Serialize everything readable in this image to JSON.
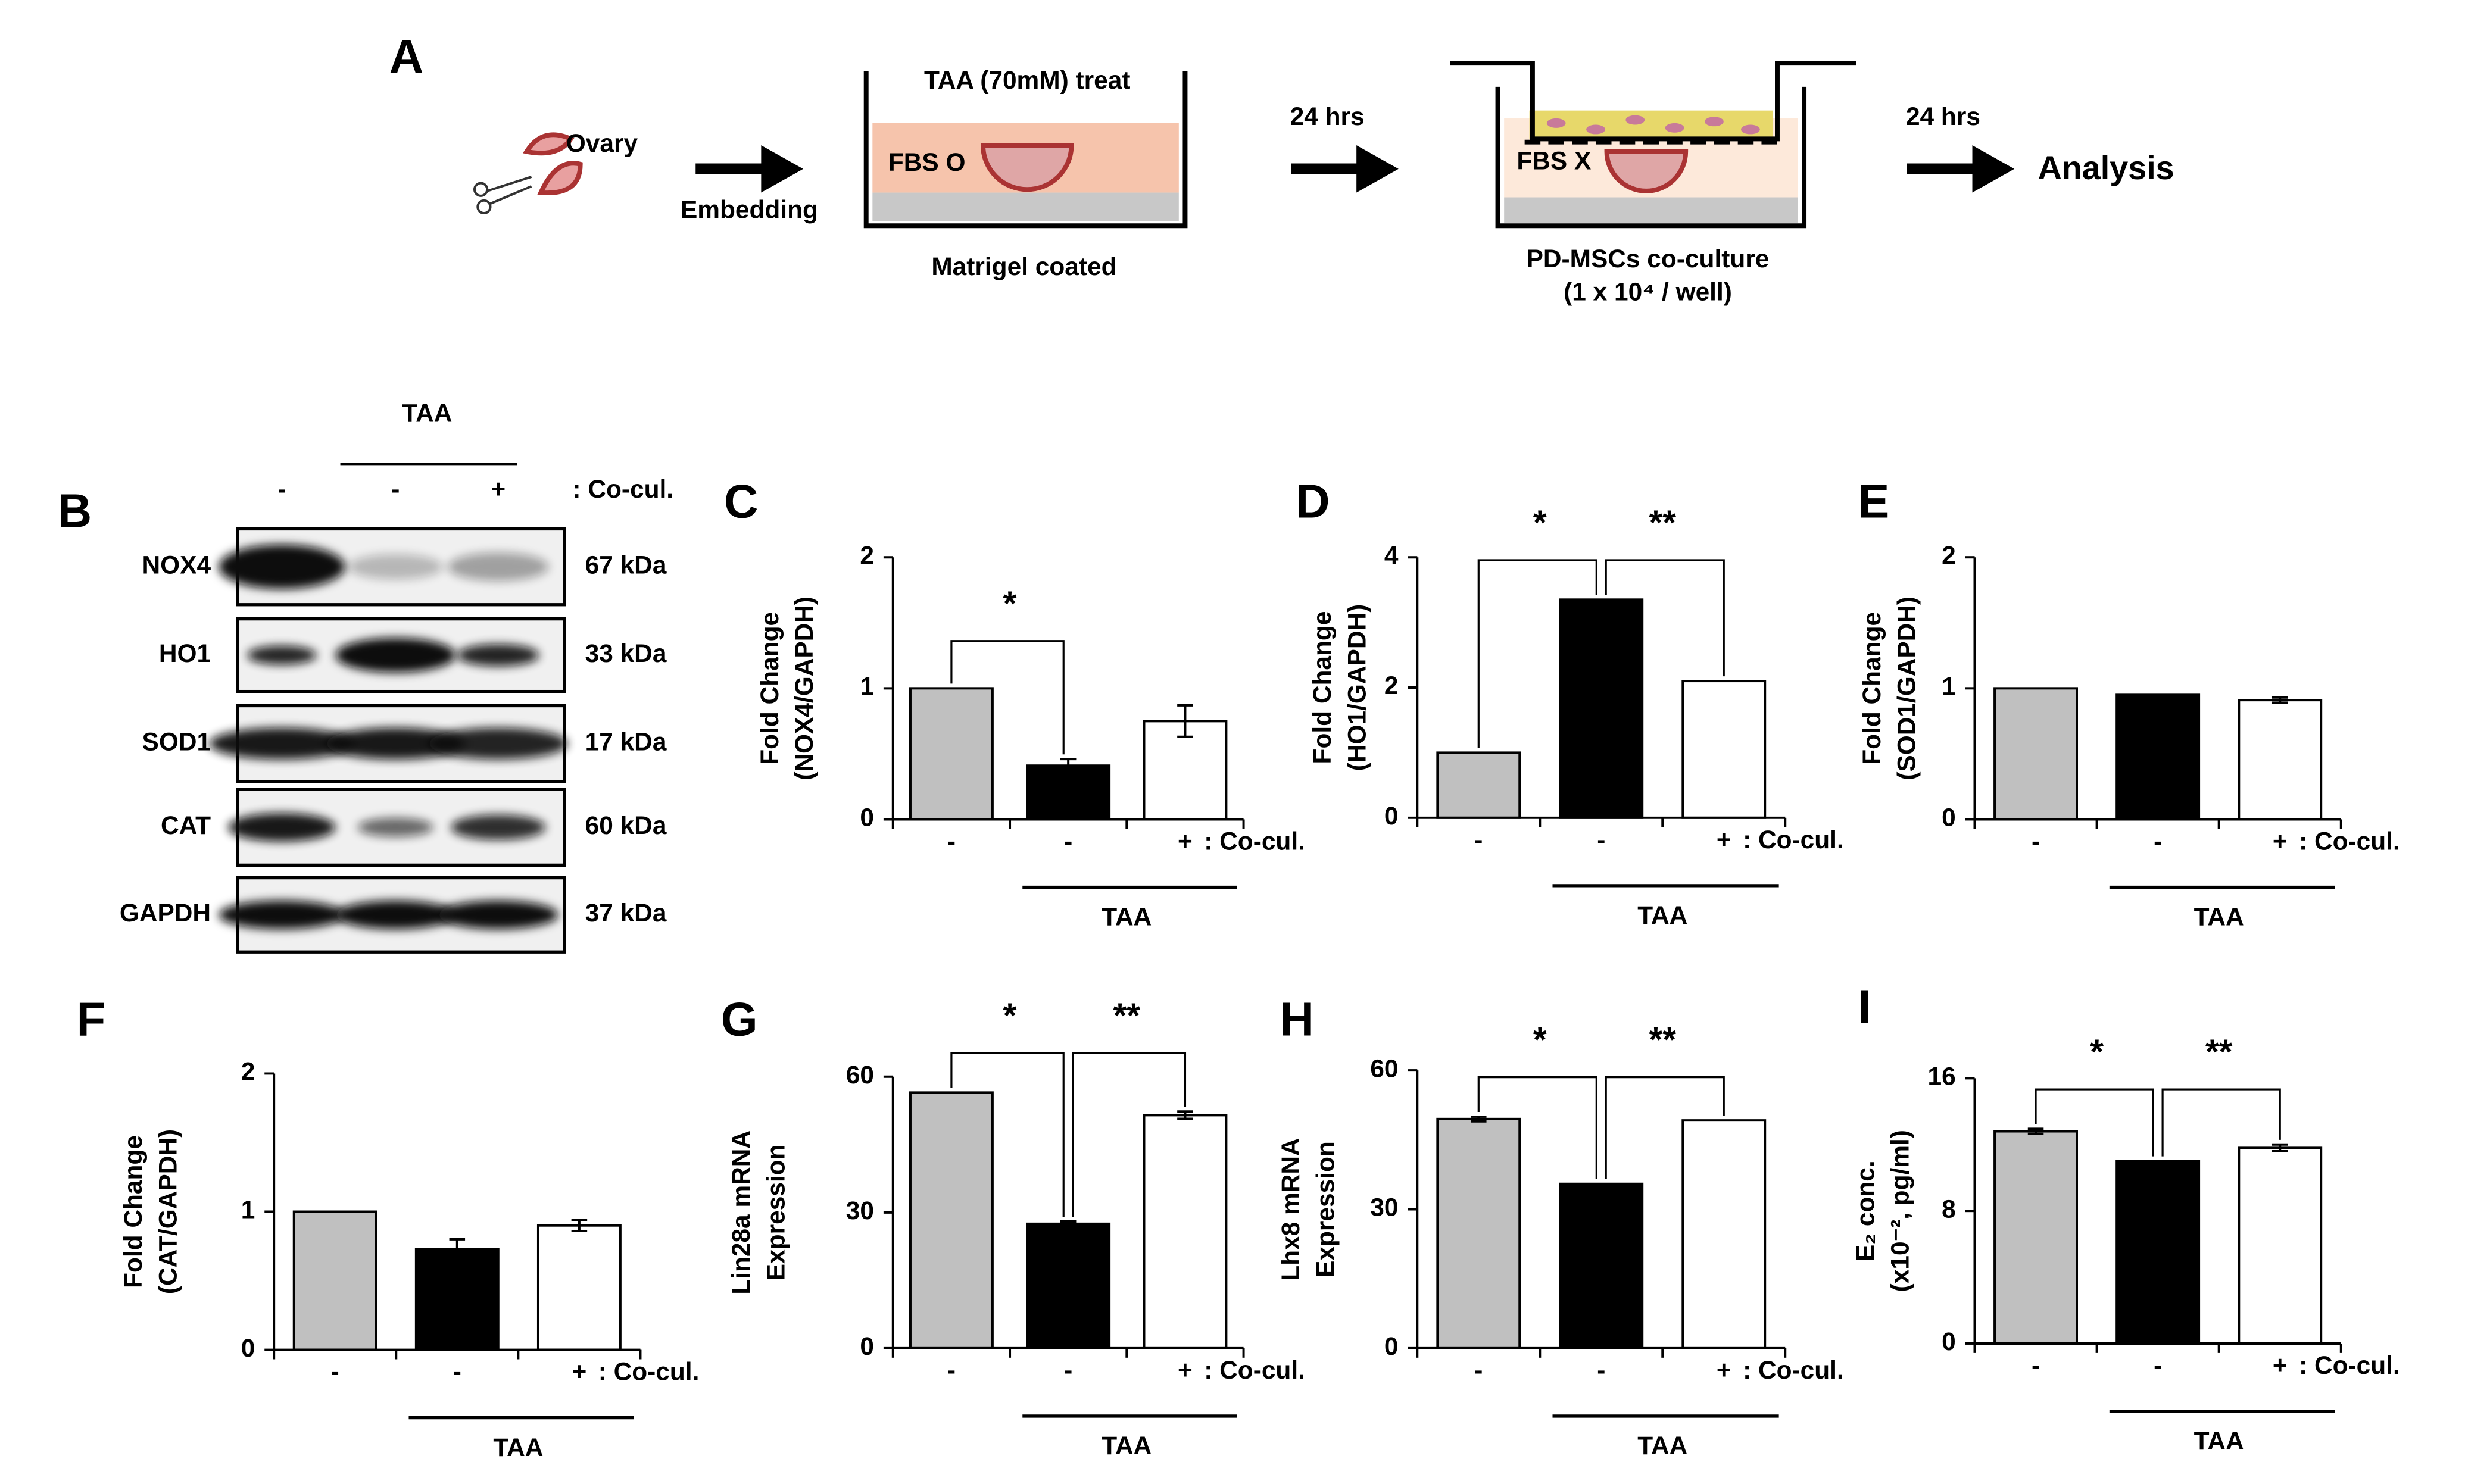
{
  "panel_a": {
    "letter": "A",
    "ovary": "Ovary",
    "embedding": "Embedding",
    "treat": "TAA (70mM) treat",
    "fbs_o": "FBS O",
    "matrigel": "Matrigel coated",
    "time1": "24 hrs",
    "fbs_x": "FBS X",
    "coculture": "PD-MSCs co-culture",
    "density": "(1 x 10⁴ / well)",
    "time2": "24 hrs",
    "analysis": "Analysis"
  },
  "blot": {
    "letter": "B",
    "group": "TAA",
    "lanes": [
      "-",
      "-",
      "+"
    ],
    "lane_note": ": Co-cul.",
    "rows": [
      {
        "protein": "NOX4",
        "size": "67 kDa"
      },
      {
        "protein": "HO1",
        "size": "33 kDa"
      },
      {
        "protein": "SOD1",
        "size": "17 kDa"
      },
      {
        "protein": "CAT",
        "size": "60 kDa"
      },
      {
        "protein": "GAPDH",
        "size": "37 kDa"
      }
    ]
  },
  "chart_data": [
    {
      "type": "bar",
      "panel": "C",
      "ylabel": [
        "Fold Change",
        "(NOX4/GAPDH)"
      ],
      "categories": [
        "-",
        "-",
        "+"
      ],
      "category_note": ": Co-cul.",
      "group": "TAA",
      "values": [
        1.0,
        0.41,
        0.75
      ],
      "errors": [
        0,
        0.05,
        0.12
      ],
      "colors": [
        "#c0c0c0",
        "#000000",
        "#ffffff"
      ],
      "ylim": [
        0,
        2
      ],
      "yticks": [
        0,
        1,
        2
      ],
      "annotations": [
        "*"
      ]
    },
    {
      "type": "bar",
      "panel": "D",
      "ylabel": [
        "Fold Change",
        "(HO1/GAPDH)"
      ],
      "categories": [
        "-",
        "-",
        "+"
      ],
      "category_note": ": Co-cul.",
      "group": "TAA",
      "values": [
        1.0,
        3.35,
        2.1
      ],
      "errors": [
        0,
        0,
        0
      ],
      "colors": [
        "#c0c0c0",
        "#000000",
        "#ffffff"
      ],
      "ylim": [
        0,
        4
      ],
      "yticks": [
        0,
        2,
        4
      ],
      "annotations": [
        "*",
        "**"
      ]
    },
    {
      "type": "bar",
      "panel": "E",
      "ylabel": [
        "Fold Change",
        "(SOD1/GAPDH)"
      ],
      "categories": [
        "-",
        "-",
        "+"
      ],
      "category_note": ": Co-cul.",
      "group": "TAA",
      "values": [
        1.0,
        0.95,
        0.91
      ],
      "errors": [
        0,
        0,
        0.02
      ],
      "colors": [
        "#c0c0c0",
        "#000000",
        "#ffffff"
      ],
      "ylim": [
        0,
        2
      ],
      "yticks": [
        0,
        1,
        2
      ],
      "annotations": []
    },
    {
      "type": "bar",
      "panel": "F",
      "ylabel": [
        "Fold Change",
        "(CAT/GAPDH)"
      ],
      "categories": [
        "-",
        "-",
        "+"
      ],
      "category_note": ": Co-cul.",
      "group": "TAA",
      "values": [
        1.0,
        0.73,
        0.9
      ],
      "errors": [
        0,
        0.07,
        0.04
      ],
      "colors": [
        "#c0c0c0",
        "#000000",
        "#ffffff"
      ],
      "ylim": [
        0,
        2
      ],
      "yticks": [
        0,
        1,
        2
      ],
      "annotations": []
    },
    {
      "type": "bar",
      "panel": "G",
      "ylabel": [
        "Lin28a mRNA",
        "Expression"
      ],
      "categories": [
        "-",
        "-",
        "+"
      ],
      "category_note": ": Co-cul.",
      "group": "TAA",
      "values": [
        56.5,
        27.5,
        51.5
      ],
      "errors": [
        0,
        0.5,
        0.8
      ],
      "colors": [
        "#c0c0c0",
        "#000000",
        "#ffffff"
      ],
      "ylim": [
        0,
        60
      ],
      "yticks": [
        0,
        30,
        60
      ],
      "annotations": [
        "*",
        "**"
      ]
    },
    {
      "type": "bar",
      "panel": "H",
      "ylabel": [
        "Lhx8 mRNA",
        "Expression"
      ],
      "categories": [
        "-",
        "-",
        "+"
      ],
      "category_note": ": Co-cul.",
      "group": "TAA",
      "values": [
        49.5,
        35.5,
        49.2
      ],
      "errors": [
        0.5,
        0,
        0
      ],
      "colors": [
        "#c0c0c0",
        "#000000",
        "#ffffff"
      ],
      "ylim": [
        0,
        60
      ],
      "yticks": [
        0,
        30,
        60
      ],
      "annotations": [
        "*",
        "**"
      ]
    },
    {
      "type": "bar",
      "panel": "I",
      "ylabel": [
        "E₂ conc.",
        "(x10⁻², pg/ml)"
      ],
      "categories": [
        "-",
        "-",
        "+"
      ],
      "category_note": ": Co-cul.",
      "group": "TAA",
      "values": [
        12.8,
        11.0,
        11.8
      ],
      "errors": [
        0.15,
        0,
        0.2
      ],
      "colors": [
        "#c0c0c0",
        "#000000",
        "#ffffff"
      ],
      "ylim": [
        0,
        16
      ],
      "yticks": [
        0,
        8,
        16
      ],
      "annotations": [
        "*",
        "**"
      ]
    }
  ]
}
